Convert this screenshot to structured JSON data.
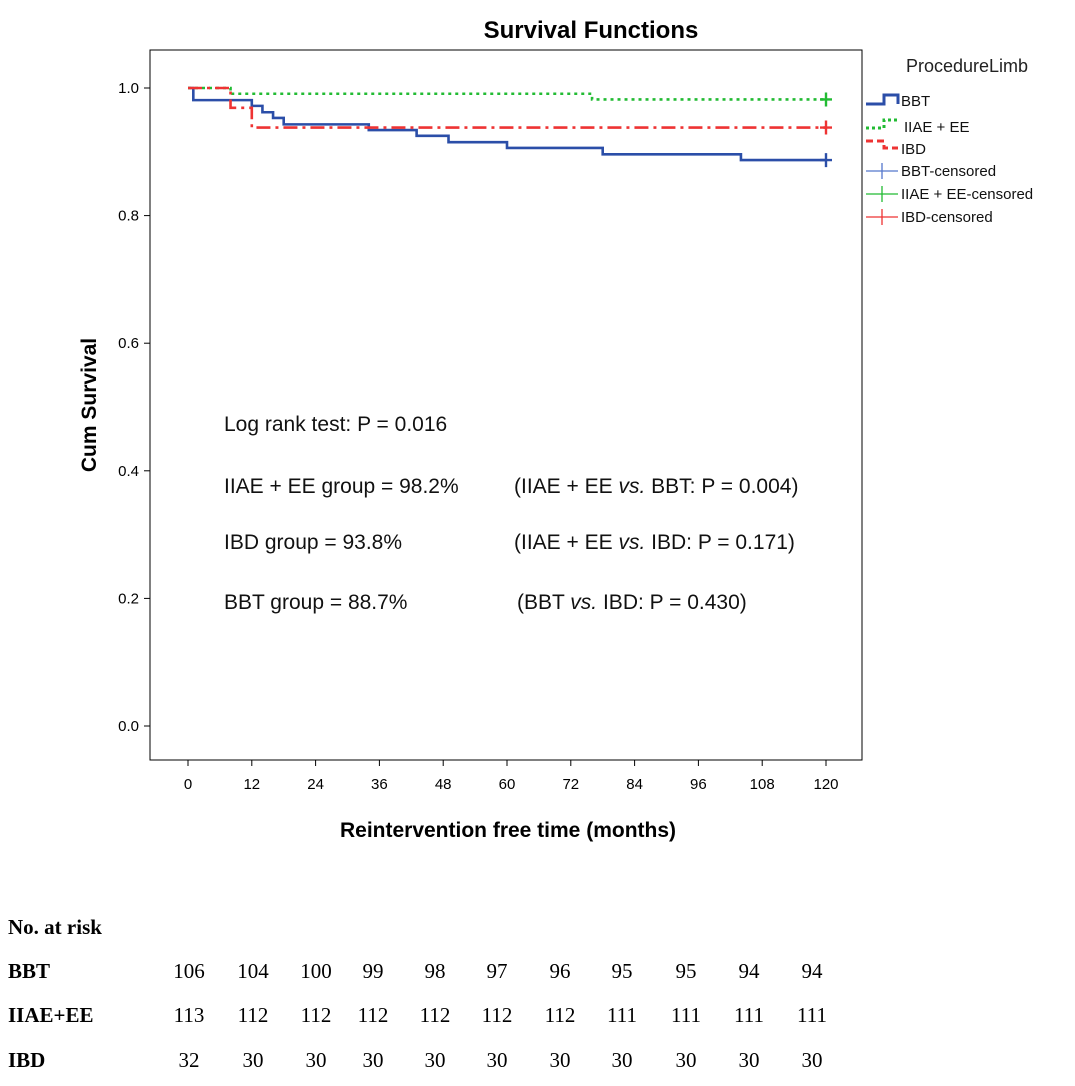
{
  "chart_data": {
    "type": "line",
    "title": "Survival Functions",
    "xlabel": "Reintervention free time (months)",
    "ylabel": "Cum Survival",
    "xlim": [
      0,
      120
    ],
    "ylim": [
      0,
      1
    ],
    "x_ticks": [
      "0",
      "12",
      "24",
      "36",
      "48",
      "60",
      "72",
      "84",
      "96",
      "108",
      "120"
    ],
    "y_ticks": [
      "0.0",
      "0.2",
      "0.4",
      "0.6",
      "0.8",
      "1.0"
    ],
    "legend_title": "ProcedureLimb",
    "legend_position": "right",
    "legend": [
      "BBT",
      "IIAE + EE",
      "IBD",
      "BBT-censored",
      "IIAE + EE-censored",
      "IBD-censored"
    ],
    "series": [
      {
        "name": "BBT",
        "color": "#2b4ea8",
        "style": "solid",
        "steps": [
          [
            0,
            1.0
          ],
          [
            1,
            0.981
          ],
          [
            12,
            0.972
          ],
          [
            14,
            0.962
          ],
          [
            16,
            0.953
          ],
          [
            18,
            0.943
          ],
          [
            34,
            0.934
          ],
          [
            43,
            0.925
          ],
          [
            49,
            0.915
          ],
          [
            60,
            0.906
          ],
          [
            78,
            0.896
          ],
          [
            104,
            0.887
          ],
          [
            120,
            0.887
          ]
        ],
        "censored_at": [
          120
        ]
      },
      {
        "name": "IIAE + EE",
        "color": "#22bb33",
        "style": "dotted",
        "steps": [
          [
            0,
            1.0
          ],
          [
            8,
            0.991
          ],
          [
            76,
            0.982
          ],
          [
            120,
            0.982
          ]
        ],
        "censored_at": [
          120
        ]
      },
      {
        "name": "IBD",
        "color": "#ee3333",
        "style": "dashed",
        "steps": [
          [
            0,
            1.0
          ],
          [
            8,
            0.969
          ],
          [
            12,
            0.938
          ],
          [
            120,
            0.938
          ]
        ],
        "censored_at": [
          120
        ]
      }
    ]
  },
  "annotations": {
    "log_rank": "Log rank test: P = 0.016",
    "iiae_group": "IIAE + EE group = 98.2%",
    "iiae_vs_bbt_pre": "(IIAE + EE ",
    "iiae_vs_bbt_post": " BBT: P = 0.004)",
    "ibd_group": "IBD group = 93.8%",
    "iiae_vs_ibd_pre": "(IIAE + EE ",
    "iiae_vs_ibd_post": " IBD: P = 0.171)",
    "bbt_group": "BBT group = 88.7%",
    "bbt_vs_ibd_pre": "(BBT ",
    "bbt_vs_ibd_post": " IBD: P = 0.430)",
    "vs": "vs."
  },
  "risk_table": {
    "header": "No. at risk",
    "rows": [
      {
        "label": "BBT",
        "values": [
          "106",
          "104",
          "100",
          "99",
          "98",
          "97",
          "96",
          "95",
          "95",
          "94",
          "94"
        ]
      },
      {
        "label": "IIAE+EE",
        "values": [
          "113",
          "112",
          "112",
          "112",
          "112",
          "112",
          "112",
          "111",
          "111",
          "111",
          "111"
        ]
      },
      {
        "label": "IBD",
        "values": [
          "32",
          "30",
          "30",
          "30",
          "30",
          "30",
          "30",
          "30",
          "30",
          "30",
          "30"
        ]
      }
    ]
  }
}
